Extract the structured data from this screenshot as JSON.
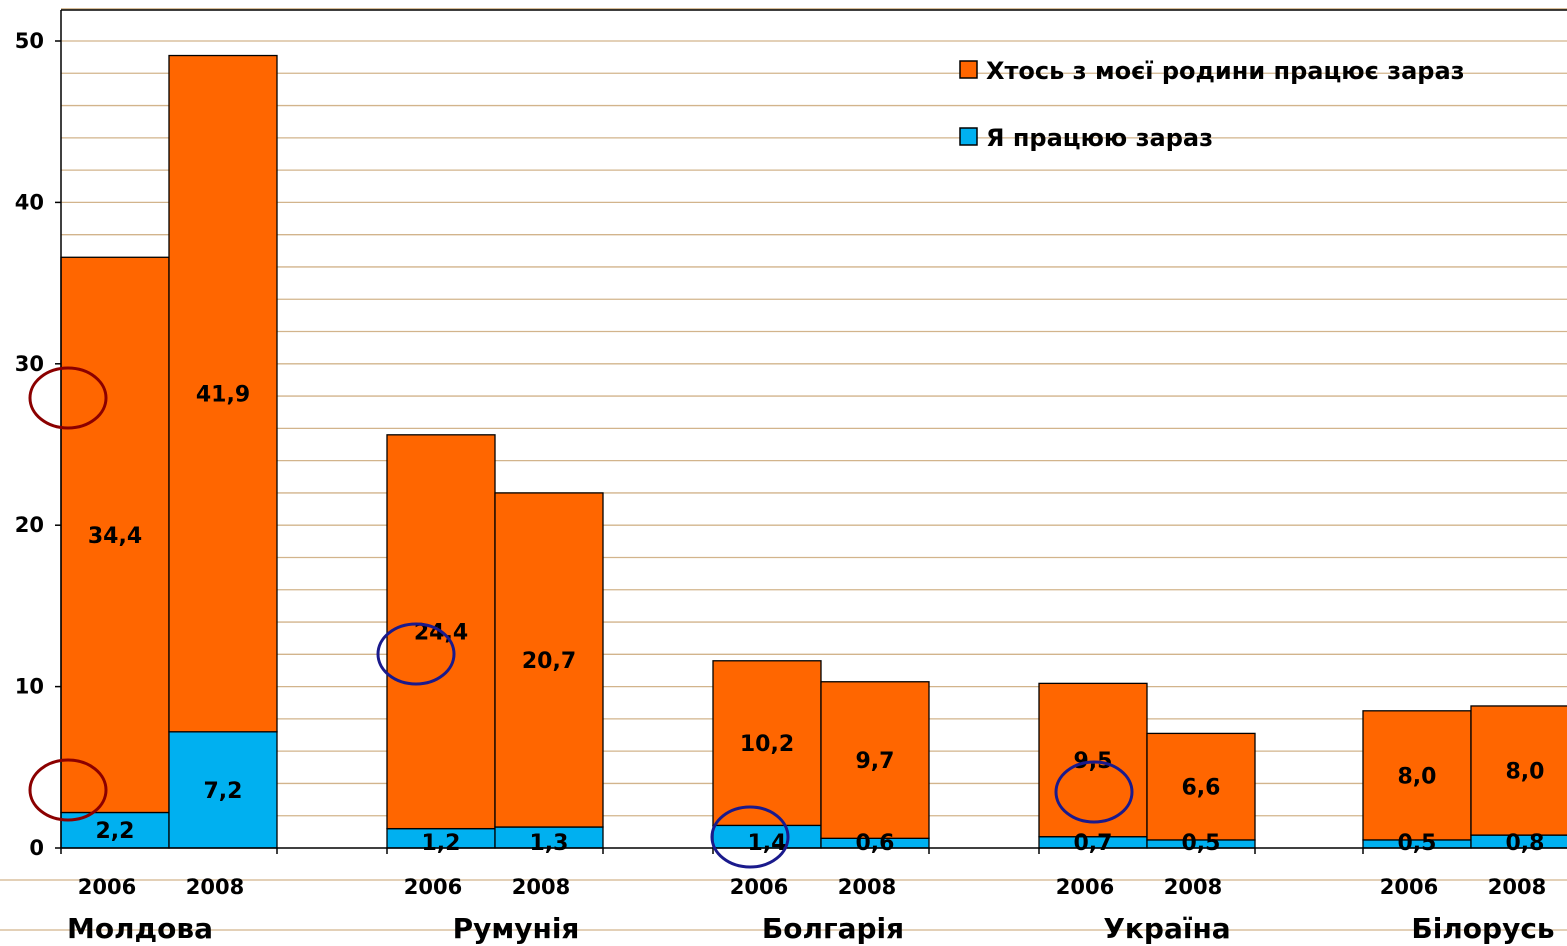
{
  "chart_data": {
    "type": "bar",
    "stacked": true,
    "ylim": [
      0,
      52
    ],
    "yticks": [
      "0",
      "10",
      "20",
      "30",
      "40",
      "50"
    ],
    "grid": true,
    "legend_position": "top-right",
    "groups": [
      {
        "country": "Молдова",
        "years": [
          "2006",
          "2008"
        ]
      },
      {
        "country": "Румунія",
        "years": [
          "2006",
          "2008"
        ]
      },
      {
        "country": "Болгарія",
        "years": [
          "2006",
          "2008"
        ]
      },
      {
        "country": "Україна",
        "years": [
          "2006",
          "2008"
        ]
      },
      {
        "country": "Білорусь",
        "years": [
          "2006",
          "2008"
        ]
      }
    ],
    "series": [
      {
        "name": "Я працюю зараз",
        "color": "#00B0F0",
        "values": [
          2.2,
          7.2,
          1.2,
          1.3,
          1.4,
          0.6,
          0.7,
          0.5,
          0.5,
          0.8
        ],
        "labels": [
          "2,2",
          "7,2",
          "1,2",
          "1,3",
          "1,4",
          "0,6",
          "0,7",
          "0,5",
          "0,5",
          "0,8"
        ]
      },
      {
        "name": "Хтось з моєї родини працює зараз",
        "color": "#FF6600",
        "values": [
          34.4,
          41.9,
          24.4,
          20.7,
          10.2,
          9.7,
          9.5,
          6.6,
          8.0,
          8.0
        ],
        "labels": [
          "34,4",
          "41,9",
          "24,4",
          "20,7",
          "10,2",
          "9,7",
          "9,5",
          "6,6",
          "8,0",
          "8,0"
        ]
      }
    ],
    "annotations": {
      "dark_red_circles": 2,
      "dark_blue_circles": 3,
      "colors": {
        "circle_red": "#8B0000",
        "circle_blue": "#1A1A8C",
        "grid": "#D2B48C"
      }
    }
  }
}
